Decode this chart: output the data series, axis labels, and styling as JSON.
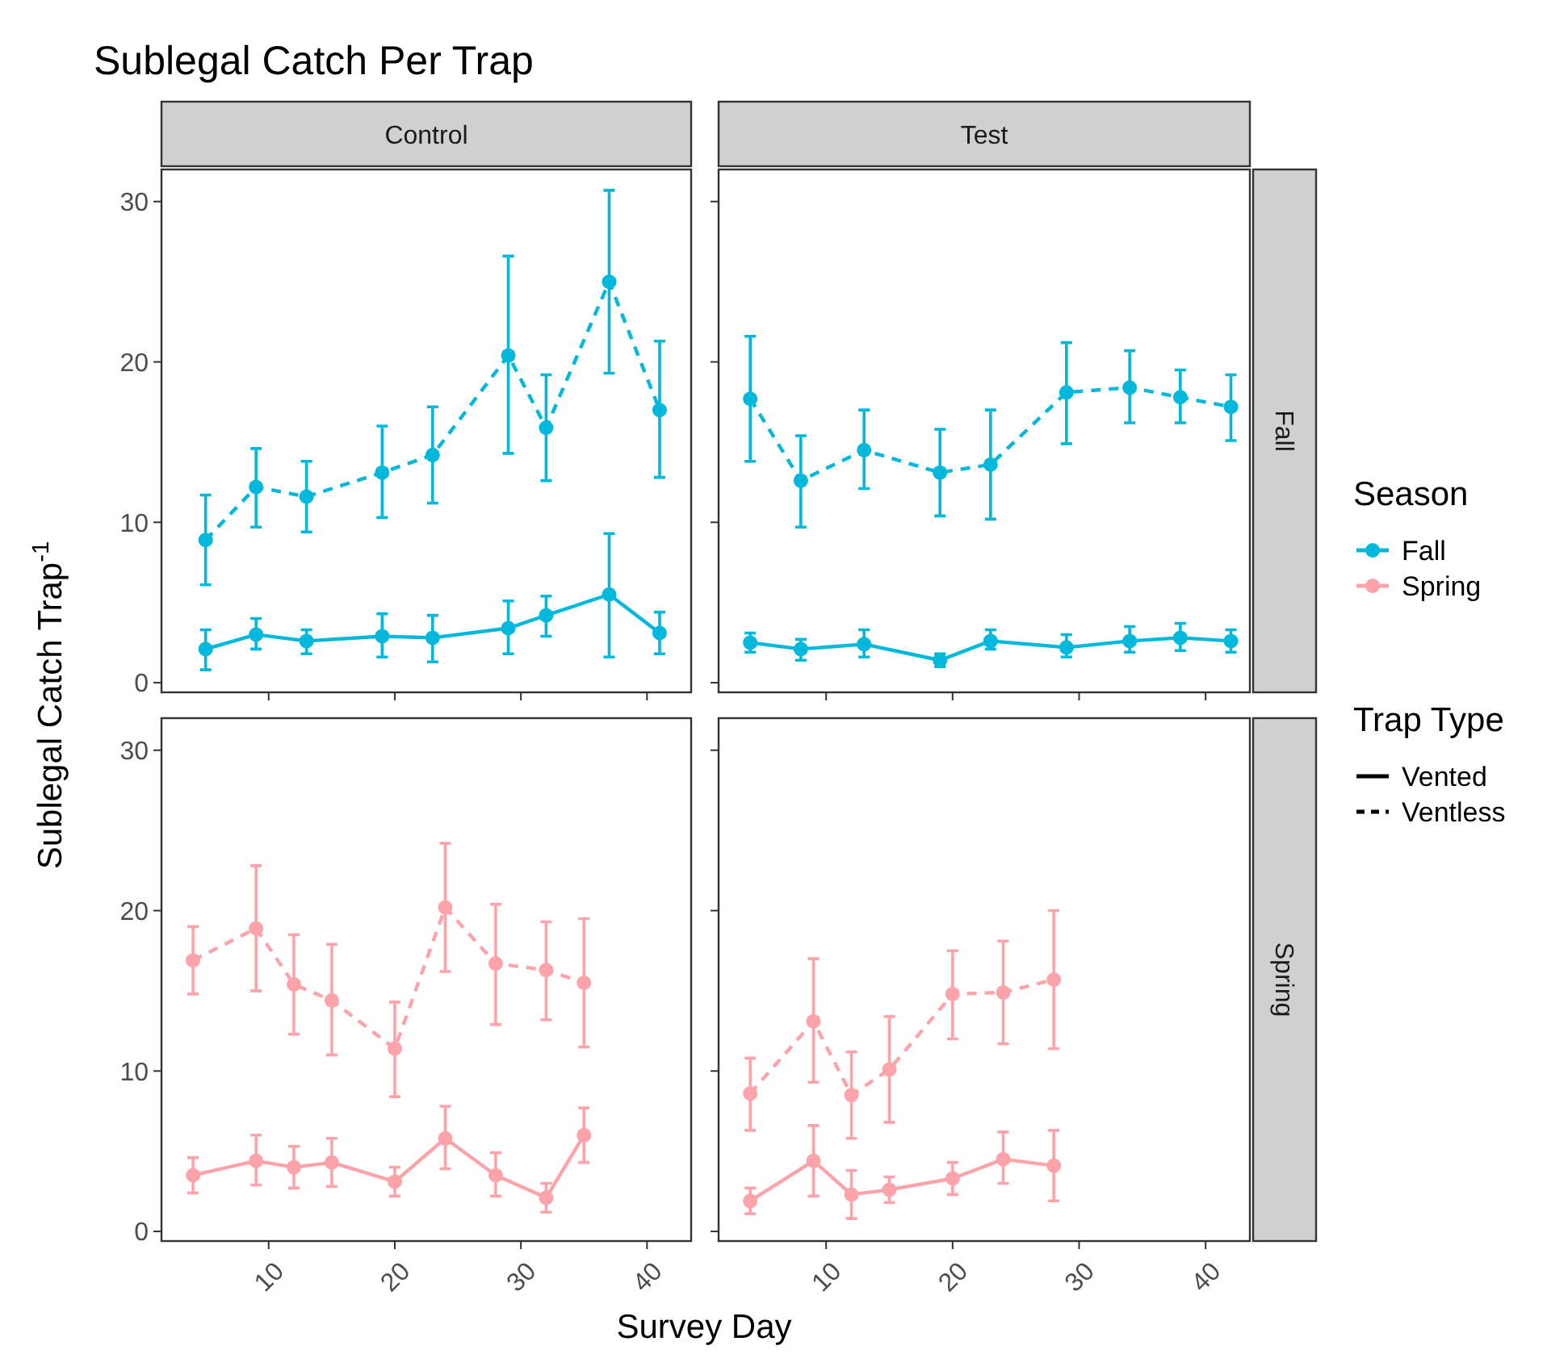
{
  "chart_data": [
    {
      "type": "line",
      "title": "Sublegal Catch Per Trap",
      "subtitle": "Control",
      "ylabel": "Sublegal Catch Trap$^{-1}$",
      "x": [
        5,
        9,
        13,
        19,
        23,
        29,
        32,
        37,
        41
      ],
      "xlim": [
        1.5,
        43.5
      ],
      "xticks": [
        10,
        20,
        30,
        40
      ],
      "ylim": [
        -0.6,
        32
      ],
      "yticks": [
        0,
        10,
        20,
        30
      ],
      "tick_labels": "y",
      "grid": false,
      "marker": "circle",
      "series": [
        {
          "color": "#00b8dc",
          "line_style": "solid",
          "values": [
            2.1,
            3.0,
            2.6,
            2.9,
            2.8,
            3.4,
            4.2,
            5.5,
            3.1
          ],
          "errors": [
            [
              0.8,
              3.3
            ],
            [
              2.1,
              4.0
            ],
            [
              1.8,
              3.3
            ],
            [
              1.6,
              4.3
            ],
            [
              1.3,
              4.2
            ],
            [
              1.8,
              5.1
            ],
            [
              2.9,
              5.4
            ],
            [
              1.6,
              9.3
            ],
            [
              1.8,
              4.4
            ]
          ]
        },
        {
          "color": "#00b8dc",
          "line_style": "dashed",
          "values": [
            8.9,
            12.2,
            11.6,
            13.1,
            14.2,
            20.4,
            15.9,
            25.0,
            17.0
          ],
          "errors": [
            [
              6.1,
              11.7
            ],
            [
              9.7,
              14.6
            ],
            [
              9.4,
              13.8
            ],
            [
              10.3,
              16.0
            ],
            [
              11.2,
              17.2
            ],
            [
              14.3,
              26.6
            ],
            [
              12.6,
              19.2
            ],
            [
              19.3,
              30.7
            ],
            [
              12.8,
              21.3
            ]
          ]
        }
      ]
    },
    {
      "type": "line",
      "subtitle": "Test",
      "annotations": [
        "Fall"
      ],
      "x": [
        4,
        8,
        13,
        19,
        23,
        29,
        34,
        38,
        42
      ],
      "xlim": [
        1.5,
        43.5
      ],
      "xticks": [
        10,
        20,
        30,
        40
      ],
      "ylim": [
        -0.6,
        32
      ],
      "yticks": [
        0,
        10,
        20,
        30
      ],
      "tick_labels": false,
      "grid": false,
      "marker": "circle",
      "series": [
        {
          "color": "#00b8dc",
          "line_style": "solid",
          "values": [
            2.5,
            2.1,
            2.4,
            1.4,
            2.6,
            2.2,
            2.6,
            2.8,
            2.6
          ],
          "errors": [
            [
              1.9,
              3.1
            ],
            [
              1.4,
              2.7
            ],
            [
              1.6,
              3.3
            ],
            [
              1.0,
              1.8
            ],
            [
              2.1,
              3.3
            ],
            [
              1.6,
              3.0
            ],
            [
              1.9,
              3.5
            ],
            [
              2.0,
              3.7
            ],
            [
              1.9,
              3.3
            ]
          ]
        },
        {
          "color": "#00b8dc",
          "line_style": "dashed",
          "values": [
            17.7,
            12.6,
            14.5,
            13.1,
            13.6,
            18.1,
            18.4,
            17.8,
            17.2
          ],
          "errors": [
            [
              13.8,
              21.6
            ],
            [
              9.7,
              15.4
            ],
            [
              12.1,
              17.0
            ],
            [
              10.4,
              15.8
            ],
            [
              10.2,
              17.0
            ],
            [
              14.9,
              21.2
            ],
            [
              16.2,
              20.7
            ],
            [
              16.2,
              19.5
            ],
            [
              15.1,
              19.2
            ]
          ]
        }
      ]
    },
    {
      "type": "line",
      "xlabel": "Survey Day",
      "x": [
        4,
        9,
        12,
        15,
        20,
        24,
        28,
        32,
        35
      ],
      "xlim": [
        1.5,
        43.5
      ],
      "xticks": [
        10,
        20,
        30,
        40
      ],
      "ylim": [
        -0.6,
        32
      ],
      "yticks": [
        0,
        10,
        20,
        30
      ],
      "grid": false,
      "marker": "circle",
      "series": [
        {
          "color": "#ffa3ab",
          "line_style": "solid",
          "values": [
            3.5,
            4.4,
            4.0,
            4.3,
            3.1,
            5.8,
            3.5,
            2.1,
            6.0
          ],
          "errors": [
            [
              2.4,
              4.6
            ],
            [
              2.9,
              6.0
            ],
            [
              2.7,
              5.3
            ],
            [
              2.8,
              5.8
            ],
            [
              2.2,
              4.0
            ],
            [
              3.9,
              7.8
            ],
            [
              2.2,
              4.9
            ],
            [
              1.2,
              3.0
            ],
            [
              4.3,
              7.7
            ]
          ]
        },
        {
          "color": "#ffa3ab",
          "line_style": "dashed",
          "values": [
            16.9,
            18.9,
            15.4,
            14.4,
            11.4,
            20.2,
            16.7,
            16.3,
            15.5
          ],
          "errors": [
            [
              14.8,
              19.0
            ],
            [
              15.0,
              22.8
            ],
            [
              12.3,
              18.5
            ],
            [
              11.0,
              17.9
            ],
            [
              8.4,
              14.3
            ],
            [
              16.2,
              24.2
            ],
            [
              12.9,
              20.4
            ],
            [
              13.2,
              19.3
            ],
            [
              11.5,
              19.5
            ]
          ]
        }
      ]
    },
    {
      "type": "line",
      "annotations": [
        "Spring"
      ],
      "x": [
        4,
        9,
        12,
        15,
        20,
        24,
        28
      ],
      "xlim": [
        1.5,
        43.5
      ],
      "xticks": [
        10,
        20,
        30,
        40
      ],
      "ylim": [
        -0.6,
        32
      ],
      "yticks": [
        0,
        10,
        20,
        30
      ],
      "tick_labels": "x",
      "grid": false,
      "marker": "circle",
      "series": [
        {
          "color": "#ffa3ab",
          "line_style": "solid",
          "values": [
            1.9,
            4.4,
            2.3,
            2.6,
            3.3,
            4.5,
            4.1
          ],
          "errors": [
            [
              1.1,
              2.7
            ],
            [
              2.2,
              6.6
            ],
            [
              0.8,
              3.8
            ],
            [
              1.8,
              3.4
            ],
            [
              2.3,
              4.3
            ],
            [
              3.0,
              6.2
            ],
            [
              1.9,
              6.3
            ]
          ]
        },
        {
          "color": "#ffa3ab",
          "line_style": "dashed",
          "values": [
            8.6,
            13.1,
            8.5,
            10.1,
            14.8,
            14.9,
            15.7
          ],
          "errors": [
            [
              6.3,
              10.8
            ],
            [
              9.3,
              17.0
            ],
            [
              5.8,
              11.2
            ],
            [
              6.8,
              13.4
            ],
            [
              12.0,
              17.5
            ],
            [
              11.7,
              18.1
            ],
            [
              11.4,
              20.0
            ]
          ]
        }
      ]
    },
    {
      "type": "other",
      "legend_title": "Season",
      "legend": "right",
      "series": [
        {
          "name": "Fall",
          "color": "#00b8dc",
          "line_style": "solid"
        },
        {
          "name": "Spring",
          "color": "#ffa3ab",
          "line_style": "solid"
        }
      ]
    },
    {
      "type": "other",
      "legend_title": "Trap Type",
      "legend": "right",
      "series": [
        {
          "name": "Vented",
          "line_style": "solid"
        },
        {
          "name": "Ventless",
          "line_style": "dashed"
        }
      ]
    }
  ]
}
